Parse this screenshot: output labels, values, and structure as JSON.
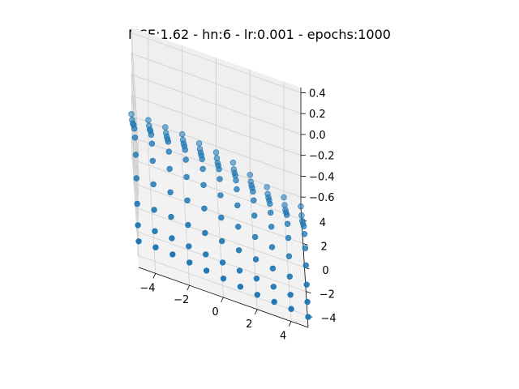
{
  "chart_data": {
    "type": "scatter",
    "projection": "3d",
    "title": "MSE:1.62 - hn:6 - lr:0.001 - epochs:1000",
    "xlabel": "",
    "ylabel": "",
    "zlabel": "",
    "xlim": [
      -5,
      5
    ],
    "ylim": [
      -5,
      5
    ],
    "zlim": [
      -0.7,
      0.45
    ],
    "x_ticks": [
      -4,
      -2,
      0,
      2,
      4
    ],
    "y_ticks": [
      -4,
      -2,
      0,
      2,
      4
    ],
    "z_ticks": [
      0.4,
      0.2,
      0.0,
      -0.2,
      -0.4,
      -0.6
    ],
    "x_tick_labels": [
      "−4",
      "−2",
      "0",
      "2",
      "4"
    ],
    "y_tick_labels": [
      "−4",
      "−2",
      "0",
      "2",
      "4"
    ],
    "z_tick_labels": [
      "0.4",
      "0.2",
      "0.0",
      "−0.2",
      "−0.4",
      "−0.6"
    ],
    "grid": true,
    "marker_color": "#1f77b4",
    "points": [
      [
        -5,
        -5,
        -0.45
      ],
      [
        -5,
        -4,
        -0.41
      ],
      [
        -5,
        -3,
        -0.32
      ],
      [
        -5,
        -2,
        -0.19
      ],
      [
        -5,
        -1,
        -0.08
      ],
      [
        -5,
        0,
        -0.03
      ],
      [
        -5,
        1,
        -0.06
      ],
      [
        -5,
        2,
        -0.14
      ],
      [
        -5,
        3,
        -0.24
      ],
      [
        -5,
        4,
        -0.32
      ],
      [
        -5,
        5,
        -0.38
      ],
      [
        -4,
        -5,
        -0.45
      ],
      [
        -4,
        -4,
        -0.41
      ],
      [
        -4,
        -3,
        -0.32
      ],
      [
        -4,
        -2,
        -0.19
      ],
      [
        -4,
        -1,
        -0.08
      ],
      [
        -4,
        0,
        -0.03
      ],
      [
        -4,
        1,
        -0.06
      ],
      [
        -4,
        2,
        -0.14
      ],
      [
        -4,
        3,
        -0.24
      ],
      [
        -4,
        4,
        -0.32
      ],
      [
        -4,
        5,
        -0.38
      ],
      [
        -3,
        -5,
        -0.46
      ],
      [
        -3,
        -4,
        -0.42
      ],
      [
        -3,
        -3,
        -0.33
      ],
      [
        -3,
        -2,
        -0.21
      ],
      [
        -3,
        -1,
        -0.1
      ],
      [
        -3,
        0,
        -0.05
      ],
      [
        -3,
        1,
        -0.07
      ],
      [
        -3,
        2,
        -0.16
      ],
      [
        -3,
        3,
        -0.25
      ],
      [
        -3,
        4,
        -0.33
      ],
      [
        -3,
        5,
        -0.39
      ],
      [
        -2,
        -5,
        -0.48
      ],
      [
        -2,
        -4,
        -0.44
      ],
      [
        -2,
        -3,
        -0.35
      ],
      [
        -2,
        -2,
        -0.23
      ],
      [
        -2,
        -1,
        -0.12
      ],
      [
        -2,
        0,
        -0.07
      ],
      [
        -2,
        1,
        -0.09
      ],
      [
        -2,
        2,
        -0.17
      ],
      [
        -2,
        3,
        -0.26
      ],
      [
        -2,
        4,
        -0.34
      ],
      [
        -2,
        5,
        -0.4
      ],
      [
        -1,
        -5,
        -0.5
      ],
      [
        -1,
        -4,
        -0.46
      ],
      [
        -1,
        -3,
        -0.37
      ],
      [
        -1,
        -2,
        -0.25
      ],
      [
        -1,
        -1,
        -0.14
      ],
      [
        -1,
        0,
        -0.1
      ],
      [
        -1,
        1,
        -0.12
      ],
      [
        -1,
        2,
        -0.2
      ],
      [
        -1,
        3,
        -0.29
      ],
      [
        -1,
        4,
        -0.37
      ],
      [
        -1,
        5,
        -0.43
      ],
      [
        0,
        -5,
        -0.52
      ],
      [
        0,
        -4,
        -0.48
      ],
      [
        0,
        -3,
        -0.39
      ],
      [
        0,
        -2,
        -0.28
      ],
      [
        0,
        -1,
        -0.18
      ],
      [
        0,
        0,
        -0.14
      ],
      [
        0,
        1,
        -0.16
      ],
      [
        0,
        2,
        -0.24
      ],
      [
        0,
        3,
        -0.33
      ],
      [
        0,
        4,
        -0.4
      ],
      [
        0,
        5,
        -0.46
      ],
      [
        1,
        -5,
        -0.54
      ],
      [
        1,
        -4,
        -0.5
      ],
      [
        1,
        -3,
        -0.42
      ],
      [
        1,
        -2,
        -0.31
      ],
      [
        1,
        -1,
        -0.22
      ],
      [
        1,
        0,
        -0.18
      ],
      [
        1,
        1,
        -0.21
      ],
      [
        1,
        2,
        -0.28
      ],
      [
        1,
        3,
        -0.37
      ],
      [
        1,
        4,
        -0.45
      ],
      [
        1,
        5,
        -0.5
      ],
      [
        2,
        -5,
        -0.56
      ],
      [
        2,
        -4,
        -0.52
      ],
      [
        2,
        -3,
        -0.45
      ],
      [
        2,
        -2,
        -0.35
      ],
      [
        2,
        -1,
        -0.26
      ],
      [
        2,
        0,
        -0.23
      ],
      [
        2,
        1,
        -0.26
      ],
      [
        2,
        2,
        -0.34
      ],
      [
        2,
        3,
        -0.43
      ],
      [
        2,
        4,
        -0.51
      ],
      [
        2,
        5,
        -0.56
      ],
      [
        3,
        -5,
        -0.57
      ],
      [
        3,
        -4,
        -0.54
      ],
      [
        3,
        -3,
        -0.48
      ],
      [
        3,
        -2,
        -0.39
      ],
      [
        3,
        -1,
        -0.31
      ],
      [
        3,
        0,
        -0.29
      ],
      [
        3,
        1,
        -0.32
      ],
      [
        3,
        2,
        -0.4
      ],
      [
        3,
        3,
        -0.49
      ],
      [
        3,
        4,
        -0.57
      ],
      [
        3,
        5,
        -0.62
      ],
      [
        4,
        -5,
        -0.58
      ],
      [
        4,
        -4,
        -0.56
      ],
      [
        4,
        -3,
        -0.5
      ],
      [
        4,
        -2,
        -0.42
      ],
      [
        4,
        -1,
        -0.36
      ],
      [
        4,
        0,
        -0.34
      ],
      [
        4,
        1,
        -0.37
      ],
      [
        4,
        2,
        -0.46
      ],
      [
        4,
        3,
        -0.55
      ],
      [
        4,
        4,
        -0.62
      ],
      [
        4,
        5,
        -0.66
      ],
      [
        5,
        -5,
        -0.6
      ],
      [
        5,
        -4,
        -0.57
      ],
      [
        5,
        -3,
        -0.52
      ],
      [
        5,
        -2,
        -0.45
      ],
      [
        5,
        -1,
        -0.4
      ],
      [
        5,
        0,
        -0.38
      ],
      [
        5,
        1,
        -0.42
      ],
      [
        5,
        2,
        -0.51
      ],
      [
        5,
        3,
        -0.6
      ],
      [
        5,
        4,
        -0.66
      ],
      [
        5,
        5,
        -0.69
      ]
    ]
  }
}
